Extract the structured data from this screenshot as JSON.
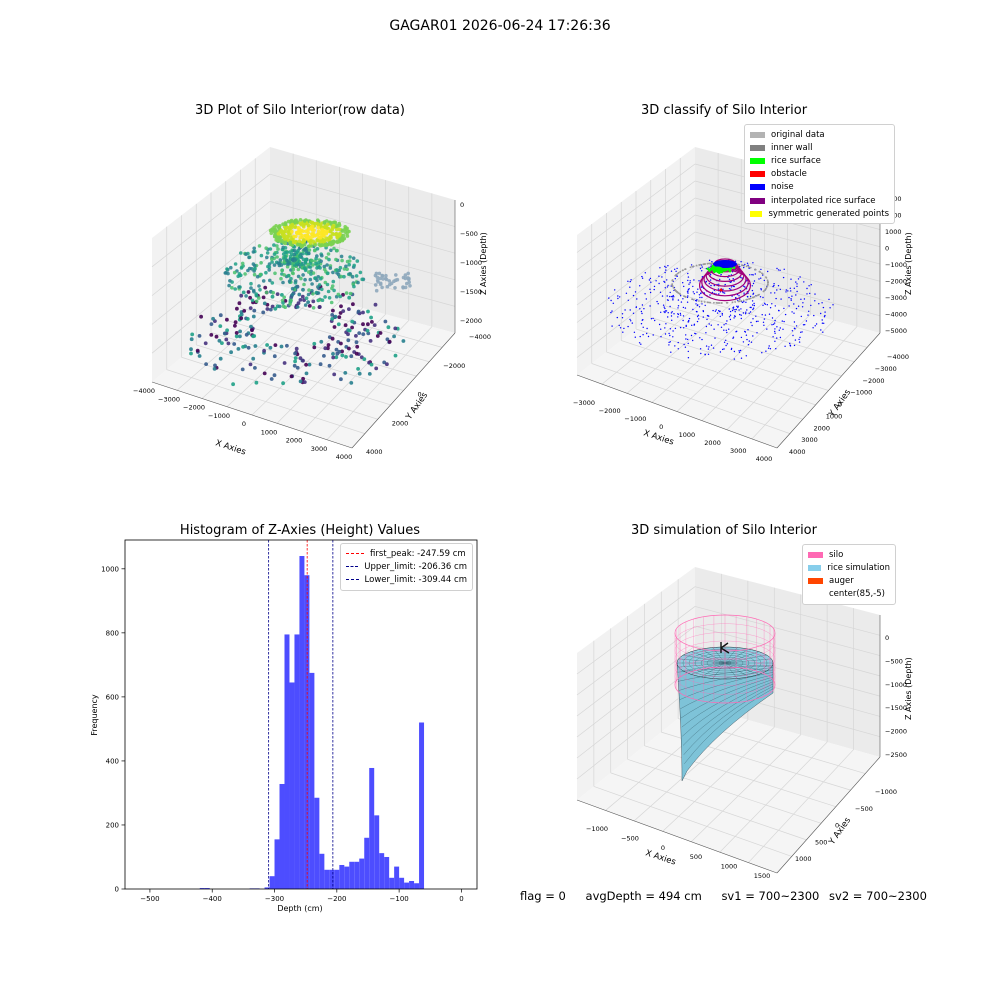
{
  "suptitle": "GAGAR01 2026-06-24 17:26:36",
  "panels": {
    "p1": {
      "title": "3D Plot of Silo Interior(row data)",
      "xlabel": "X Axies",
      "ylabel": "Y Axies",
      "zlabel": "Z Axies (Depth)",
      "xticks": [
        "−4000",
        "−3000",
        "−2000",
        "−1000",
        "0",
        "1000",
        "2000",
        "3000",
        "4000"
      ],
      "yticks": [
        "−4000",
        "−2000",
        "0",
        "2000",
        "4000"
      ],
      "zticks": [
        "0",
        "−500",
        "−1000",
        "−1500",
        "−2000"
      ]
    },
    "p2": {
      "title": "3D classify of Silo Interior",
      "xlabel": "X Axies",
      "ylabel": "Y Axies",
      "zlabel": "Z Axies (Depth)",
      "xticks": [
        "−3000",
        "−2000",
        "−1000",
        "0",
        "1000",
        "2000",
        "3000",
        "4000"
      ],
      "yticks": [
        "−4000",
        "−3000",
        "−2000",
        "−1000",
        "0",
        "1000",
        "2000",
        "3000",
        "4000"
      ],
      "zticks": [
        "3000",
        "2000",
        "1000",
        "0",
        "−1000",
        "−2000",
        "−3000",
        "−4000",
        "−5000"
      ],
      "legend": [
        {
          "label": "original data",
          "color": "#b3b3b3"
        },
        {
          "label": "inner wall",
          "color": "#808080"
        },
        {
          "label": "rice surface",
          "color": "#00ff00"
        },
        {
          "label": "obstacle",
          "color": "#ff0000"
        },
        {
          "label": "noise",
          "color": "#0000ff"
        },
        {
          "label": "interpolated rice surface",
          "color": "#800080"
        },
        {
          "label": "symmetric generated points",
          "color": "#ffff00"
        }
      ]
    },
    "p4": {
      "title": "3D simulation of Silo Interior",
      "xlabel": "X Axies",
      "ylabel": "Y Axies",
      "zlabel": "Z Axies (Depth)",
      "xticks": [
        "−1000",
        "−500",
        "0",
        "500",
        "1000",
        "1500"
      ],
      "yticks": [
        "−1000",
        "−500",
        "0",
        "500",
        "1000"
      ],
      "zticks": [
        "0",
        "−500",
        "−1000",
        "−1500",
        "−2000",
        "−2500"
      ],
      "legend": [
        {
          "label": "silo",
          "color": "#ff69b4"
        },
        {
          "label": "rice simulation",
          "color": "#87ceeb"
        },
        {
          "label": "auger",
          "color": "#ff4500"
        },
        {
          "label": "center(85,-5)",
          "color": "#ffffff"
        }
      ]
    }
  },
  "status": {
    "flag": "flag = 0",
    "avg_depth": "avgDepth = 494 cm",
    "sv1": "sv1 = 700~2300",
    "sv2": "sv2 = 700~2300"
  },
  "chart_data": [
    {
      "type": "scatter",
      "title": "3D Plot of Silo Interior(row data)",
      "xlabel": "X Axies",
      "ylabel": "Y Axies",
      "zlabel": "Z Axies (Depth)",
      "xlim": [
        -4000,
        4000
      ],
      "ylim": [
        -4000,
        4000
      ],
      "zlim": [
        -2000,
        0
      ],
      "colormap": "viridis"
    },
    {
      "type": "scatter",
      "title": "3D classify of Silo Interior",
      "xlabel": "X Axies",
      "ylabel": "Y Axies",
      "zlabel": "Z Axies (Depth)",
      "xlim": [
        -3000,
        4000
      ],
      "ylim": [
        -4000,
        4000
      ],
      "zlim": [
        -5000,
        3000
      ],
      "legend_position": "top-right"
    },
    {
      "type": "bar",
      "title": "Histogram of Z-Axies (Height) Values",
      "xlabel": "Depth (cm)",
      "ylabel": "Frequency",
      "xlim": [
        -540,
        25
      ],
      "ylim": [
        0,
        1090
      ],
      "xticks": [
        -500,
        -400,
        -300,
        -200,
        -100,
        0
      ],
      "yticks": [
        0,
        200,
        400,
        600,
        800,
        1000
      ],
      "bar_color": "#4d4dff",
      "bin_width": 8,
      "bins": [
        {
          "x": -420,
          "value": 3
        },
        {
          "x": -412,
          "value": 3
        },
        {
          "x": -340,
          "value": 2
        },
        {
          "x": -332,
          "value": 2
        },
        {
          "x": -316,
          "value": 5
        },
        {
          "x": -308,
          "value": 40
        },
        {
          "x": -300,
          "value": 155
        },
        {
          "x": -292,
          "value": 328
        },
        {
          "x": -284,
          "value": 795
        },
        {
          "x": -276,
          "value": 645
        },
        {
          "x": -268,
          "value": 795
        },
        {
          "x": -260,
          "value": 1040
        },
        {
          "x": -252,
          "value": 980
        },
        {
          "x": -244,
          "value": 675
        },
        {
          "x": -236,
          "value": 285
        },
        {
          "x": -228,
          "value": 110
        },
        {
          "x": -220,
          "value": 60
        },
        {
          "x": -212,
          "value": 60
        },
        {
          "x": -204,
          "value": 60
        },
        {
          "x": -196,
          "value": 75
        },
        {
          "x": -188,
          "value": 70
        },
        {
          "x": -180,
          "value": 85
        },
        {
          "x": -172,
          "value": 85
        },
        {
          "x": -164,
          "value": 95
        },
        {
          "x": -156,
          "value": 160
        },
        {
          "x": -148,
          "value": 378
        },
        {
          "x": -140,
          "value": 230
        },
        {
          "x": -132,
          "value": 112
        },
        {
          "x": -124,
          "value": 100
        },
        {
          "x": -116,
          "value": 35
        },
        {
          "x": -108,
          "value": 70
        },
        {
          "x": -100,
          "value": 35
        },
        {
          "x": -92,
          "value": 20
        },
        {
          "x": -84,
          "value": 25
        },
        {
          "x": -76,
          "value": 18
        },
        {
          "x": -68,
          "value": 520
        }
      ],
      "vlines": [
        {
          "label": "first_peak: -247.59 cm",
          "value": -247.59,
          "color": "#ff0000"
        },
        {
          "label": "Upper_limit: -206.36 cm",
          "value": -206.36,
          "color": "#00008b"
        },
        {
          "label": "Lower_limit: -309.44 cm",
          "value": -309.44,
          "color": "#00008b"
        }
      ],
      "legend_position": "top-right"
    },
    {
      "type": "surface",
      "title": "3D simulation of Silo Interior",
      "xlabel": "X Axies",
      "ylabel": "Y Axies",
      "zlabel": "Z Axies (Depth)",
      "xlim": [
        -1250,
        1500
      ],
      "ylim": [
        -1250,
        1250
      ],
      "zlim": [
        -2500,
        300
      ],
      "legend_position": "top-right"
    }
  ]
}
